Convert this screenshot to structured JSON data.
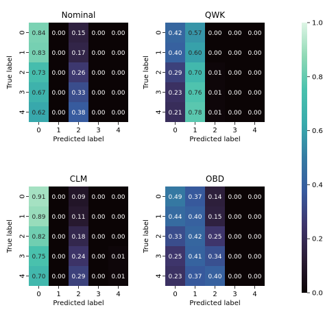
{
  "chart_data": [
    {
      "type": "heatmap",
      "title": "Nominal",
      "xlabel": "Predicted label",
      "ylabel": "True label",
      "x_ticks": [
        "0",
        "1",
        "2",
        "3",
        "4"
      ],
      "y_ticks": [
        "0",
        "1",
        "2",
        "3",
        "4"
      ],
      "values": [
        [
          0.84,
          0.0,
          0.15,
          0.0,
          0.0
        ],
        [
          0.83,
          0.0,
          0.17,
          0.0,
          0.0
        ],
        [
          0.73,
          0.0,
          0.26,
          0.0,
          0.0
        ],
        [
          0.67,
          0.0,
          0.33,
          0.0,
          0.0
        ],
        [
          0.62,
          0.0,
          0.38,
          0.0,
          0.0
        ]
      ],
      "labels": [
        [
          "0.84",
          "0.00",
          "0.15",
          "0.00",
          "0.00"
        ],
        [
          "0.83",
          "0.00",
          "0.17",
          "0.00",
          "0.00"
        ],
        [
          "0.73",
          "0.00",
          "0.26",
          "0.00",
          "0.00"
        ],
        [
          "0.67",
          "0.00",
          "0.33",
          "0.00",
          "0.00"
        ],
        [
          "0.62",
          "0.00",
          "0.38",
          "0.00",
          "0.00"
        ]
      ]
    },
    {
      "type": "heatmap",
      "title": "QWK",
      "xlabel": "Predicted label",
      "ylabel": "True label",
      "x_ticks": [
        "0",
        "1",
        "2",
        "3",
        "4"
      ],
      "y_ticks": [
        "0",
        "1",
        "2",
        "3",
        "4"
      ],
      "values": [
        [
          0.42,
          0.57,
          0.0,
          0.0,
          0.0
        ],
        [
          0.4,
          0.6,
          0.0,
          0.0,
          0.0
        ],
        [
          0.29,
          0.7,
          0.01,
          0.0,
          0.0
        ],
        [
          0.23,
          0.76,
          0.01,
          0.0,
          0.0
        ],
        [
          0.21,
          0.78,
          0.01,
          0.0,
          0.0
        ]
      ],
      "labels": [
        [
          "0.42",
          "0.57",
          "0.00",
          "0.00",
          "0.00"
        ],
        [
          "0.40",
          "0.60",
          "0.00",
          "0.00",
          "0.00"
        ],
        [
          "0.29",
          "0.70",
          "0.01",
          "0.00",
          "0.00"
        ],
        [
          "0.23",
          "0.76",
          "0.01",
          "0.00",
          "0.00"
        ],
        [
          "0.21",
          "0.78",
          "0.01",
          "0.00",
          "0.00"
        ]
      ]
    },
    {
      "type": "heatmap",
      "title": "CLM",
      "xlabel": "Predicted label",
      "ylabel": "True label",
      "x_ticks": [
        "0",
        "1",
        "2",
        "3",
        "4"
      ],
      "y_ticks": [
        "0",
        "1",
        "2",
        "3",
        "4"
      ],
      "values": [
        [
          0.91,
          0.0,
          0.09,
          0.0,
          0.0
        ],
        [
          0.89,
          0.0,
          0.11,
          0.0,
          0.0
        ],
        [
          0.82,
          0.0,
          0.18,
          0.0,
          0.0
        ],
        [
          0.75,
          0.0,
          0.24,
          0.0,
          0.01
        ],
        [
          0.7,
          0.0,
          0.29,
          0.0,
          0.01
        ]
      ],
      "labels": [
        [
          "0.91",
          "0.00",
          "0.09",
          "0.00",
          "0.00"
        ],
        [
          "0.89",
          "0.00",
          "0.11",
          "0.00",
          "0.00"
        ],
        [
          "0.82",
          "0.00",
          "0.18",
          "0.00",
          "0.00"
        ],
        [
          "0.75",
          "0.00",
          "0.24",
          "0.00",
          "0.01"
        ],
        [
          "0.70",
          "0.00",
          "0.29",
          "0.00",
          "0.01"
        ]
      ]
    },
    {
      "type": "heatmap",
      "title": "OBD",
      "xlabel": "Predicted label",
      "ylabel": "True label",
      "x_ticks": [
        "0",
        "1",
        "2",
        "3",
        "4"
      ],
      "y_ticks": [
        "0",
        "1",
        "2",
        "3",
        "4"
      ],
      "values": [
        [
          0.49,
          0.37,
          0.14,
          0.0,
          0.0
        ],
        [
          0.44,
          0.4,
          0.15,
          0.0,
          0.0
        ],
        [
          0.33,
          0.42,
          0.25,
          0.0,
          0.0
        ],
        [
          0.25,
          0.41,
          0.34,
          0.0,
          0.0
        ],
        [
          0.23,
          0.37,
          0.4,
          0.0,
          0.0
        ]
      ],
      "labels": [
        [
          "0.49",
          "0.37",
          "0.14",
          "0.00",
          "0.00"
        ],
        [
          "0.44",
          "0.40",
          "0.15",
          "0.00",
          "0.00"
        ],
        [
          "0.33",
          "0.42",
          "0.25",
          "0.00",
          "0.00"
        ],
        [
          "0.25",
          "0.41",
          "0.34",
          "0.00",
          "0.00"
        ],
        [
          "0.23",
          "0.37",
          "0.40",
          "0.00",
          "0.00"
        ]
      ]
    }
  ],
  "colorbar": {
    "range": [
      0.0,
      1.0
    ],
    "ticks": [
      "0.0",
      "0.2",
      "0.4",
      "0.6",
      "0.8",
      "1.0"
    ],
    "colormap": "mako",
    "colormap_stops": [
      "#0b0405",
      "#2b1c35",
      "#3e356b",
      "#375a9e",
      "#357ba2",
      "#38aaac",
      "#49c1ad",
      "#8fd9b5",
      "#def5e5"
    ]
  }
}
